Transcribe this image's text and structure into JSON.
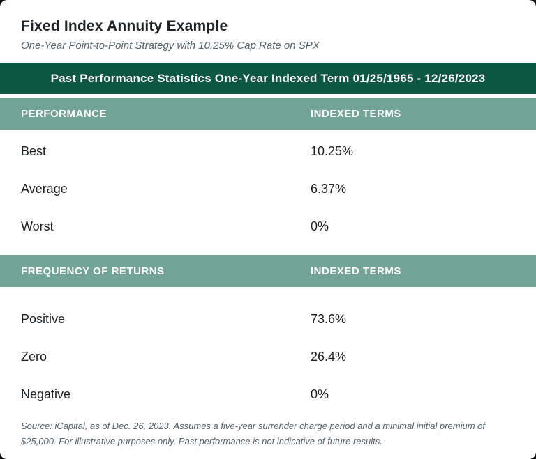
{
  "card": {
    "title": "Fixed Index Annuity Example",
    "subtitle": "One-Year Point-to-Point Strategy with 10.25% Cap Rate on SPX",
    "banner": "Past Performance Statistics One-Year Indexed Term 01/25/1965 - 12/26/2023",
    "source_note": "Source: iCapital, as of Dec. 26, 2023. Assumes a five-year surrender charge period and a minimal initial premium of $25,000. For illustrative purposes only. Past performance is not indicative of future results."
  },
  "sections": [
    {
      "header": {
        "col1": "PERFORMANCE",
        "col2": "INDEXED TERMS"
      },
      "rows": [
        {
          "label": "Best",
          "value": "10.25%"
        },
        {
          "label": "Average",
          "value": "6.37%"
        },
        {
          "label": "Worst",
          "value": "0%"
        }
      ]
    },
    {
      "header": {
        "col1": "FREQUENCY OF RETURNS",
        "col2": "INDEXED TERMS"
      },
      "rows": [
        {
          "label": "Positive",
          "value": "73.6%"
        },
        {
          "label": "Zero",
          "value": "26.4%"
        },
        {
          "label": "Negative",
          "value": "0%"
        }
      ]
    }
  ],
  "colors": {
    "banner_green": "#0B5741",
    "header_sage": "#72A496",
    "title_text": "#212427",
    "row_text": "#1E2124",
    "muted_text": "#54626A",
    "card_background": "#FFFFFF",
    "page_background": "#000000"
  }
}
